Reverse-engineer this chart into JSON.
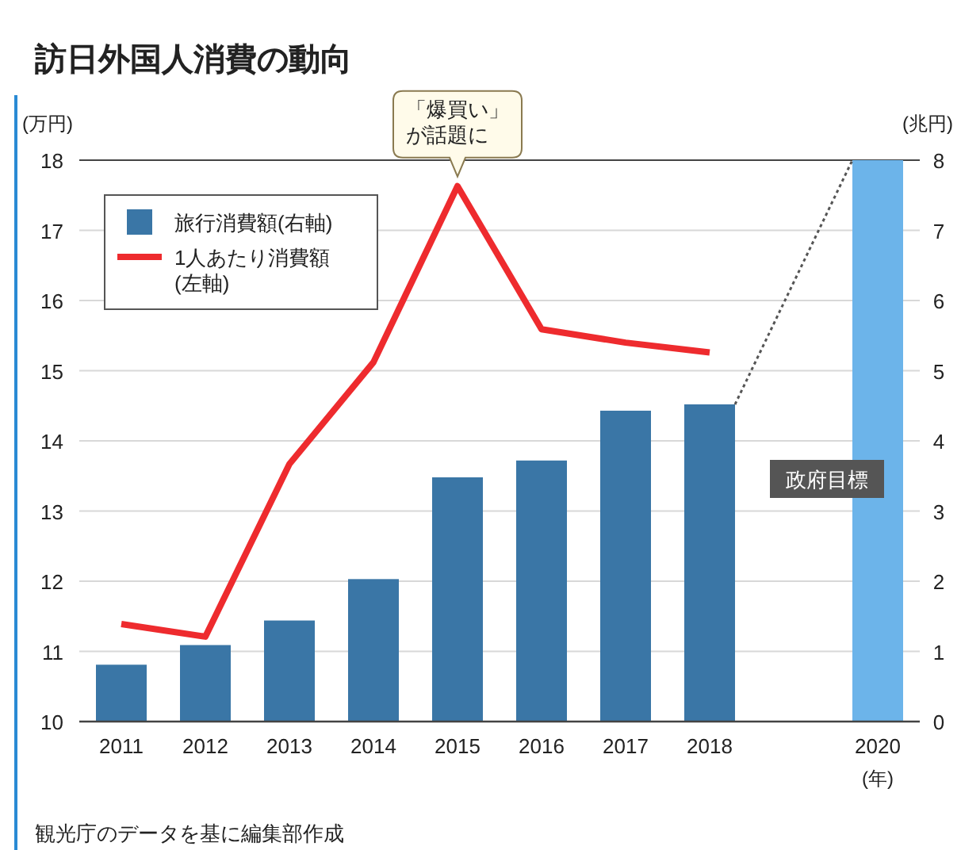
{
  "chart_data": {
    "type": "bar",
    "title": "訪日外国人消費の動向",
    "categories": [
      "2011",
      "2012",
      "2013",
      "2014",
      "2015",
      "2016",
      "2017",
      "2018",
      null,
      "2020"
    ],
    "series": [
      {
        "name": "旅行消費額(右軸)",
        "axis": "y2",
        "color": "#3a76a6",
        "colors": [
          "#3a76a6",
          "#3a76a6",
          "#3a76a6",
          "#3a76a6",
          "#3a76a6",
          "#3a76a6",
          "#3a76a6",
          "#3a76a6",
          null,
          "#6cb4ea"
        ],
        "values": [
          0.81,
          1.09,
          1.44,
          2.03,
          3.48,
          3.72,
          4.43,
          4.52,
          null,
          8
        ]
      },
      {
        "name": "1人あたり消費額\n(左軸)",
        "type": "line",
        "color": "#ee2b2e",
        "values": [
          11.39,
          11.21,
          13.67,
          15.12,
          17.63,
          15.59,
          15.4,
          15.26,
          null,
          null
        ]
      }
    ],
    "xlabel": "(年)",
    "ylabel": "(万円)",
    "y2label": "(兆円)",
    "ylim": [
      10,
      18
    ],
    "yticks": [
      10,
      11,
      12,
      13,
      14,
      15,
      16,
      17,
      18
    ],
    "y2lim": [
      0,
      8
    ],
    "y2ticks": [
      0,
      1,
      2,
      3,
      4,
      5,
      6,
      7,
      8
    ],
    "grid": "y",
    "legend": "top left",
    "annotations": [
      {
        "text": "「爆買い」が話題に",
        "x": "2015",
        "y": 17.63
      },
      "政府目標",
      "観光庁のデータを基に編集部作成"
    ]
  }
}
